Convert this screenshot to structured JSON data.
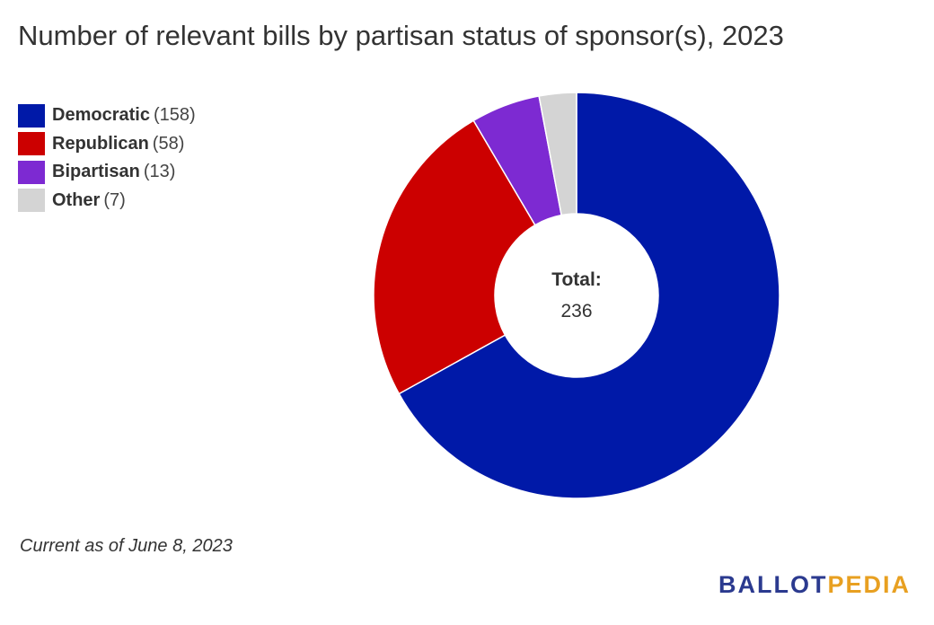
{
  "chart_data": {
    "type": "pie",
    "title": "Number of relevant bills by partisan status of sponsor(s), 2023",
    "categories": [
      "Democratic",
      "Republican",
      "Bipartisan",
      "Other"
    ],
    "values": [
      158,
      58,
      13,
      7
    ],
    "count_labels": [
      "(158)",
      "(58)",
      "(13)",
      "(7)"
    ],
    "colors": [
      "#0019a8",
      "#cc0000",
      "#7d2ad2",
      "#d4d4d4"
    ],
    "center_label": "Total:",
    "center_value": "236",
    "legend_position": "top-left",
    "donut": true
  },
  "footnote": "Current as of June 8, 2023",
  "logo": {
    "part1": "BALLOT",
    "part2": "PEDIA",
    "color1": "#2b3a8f",
    "color2": "#e8a021"
  }
}
